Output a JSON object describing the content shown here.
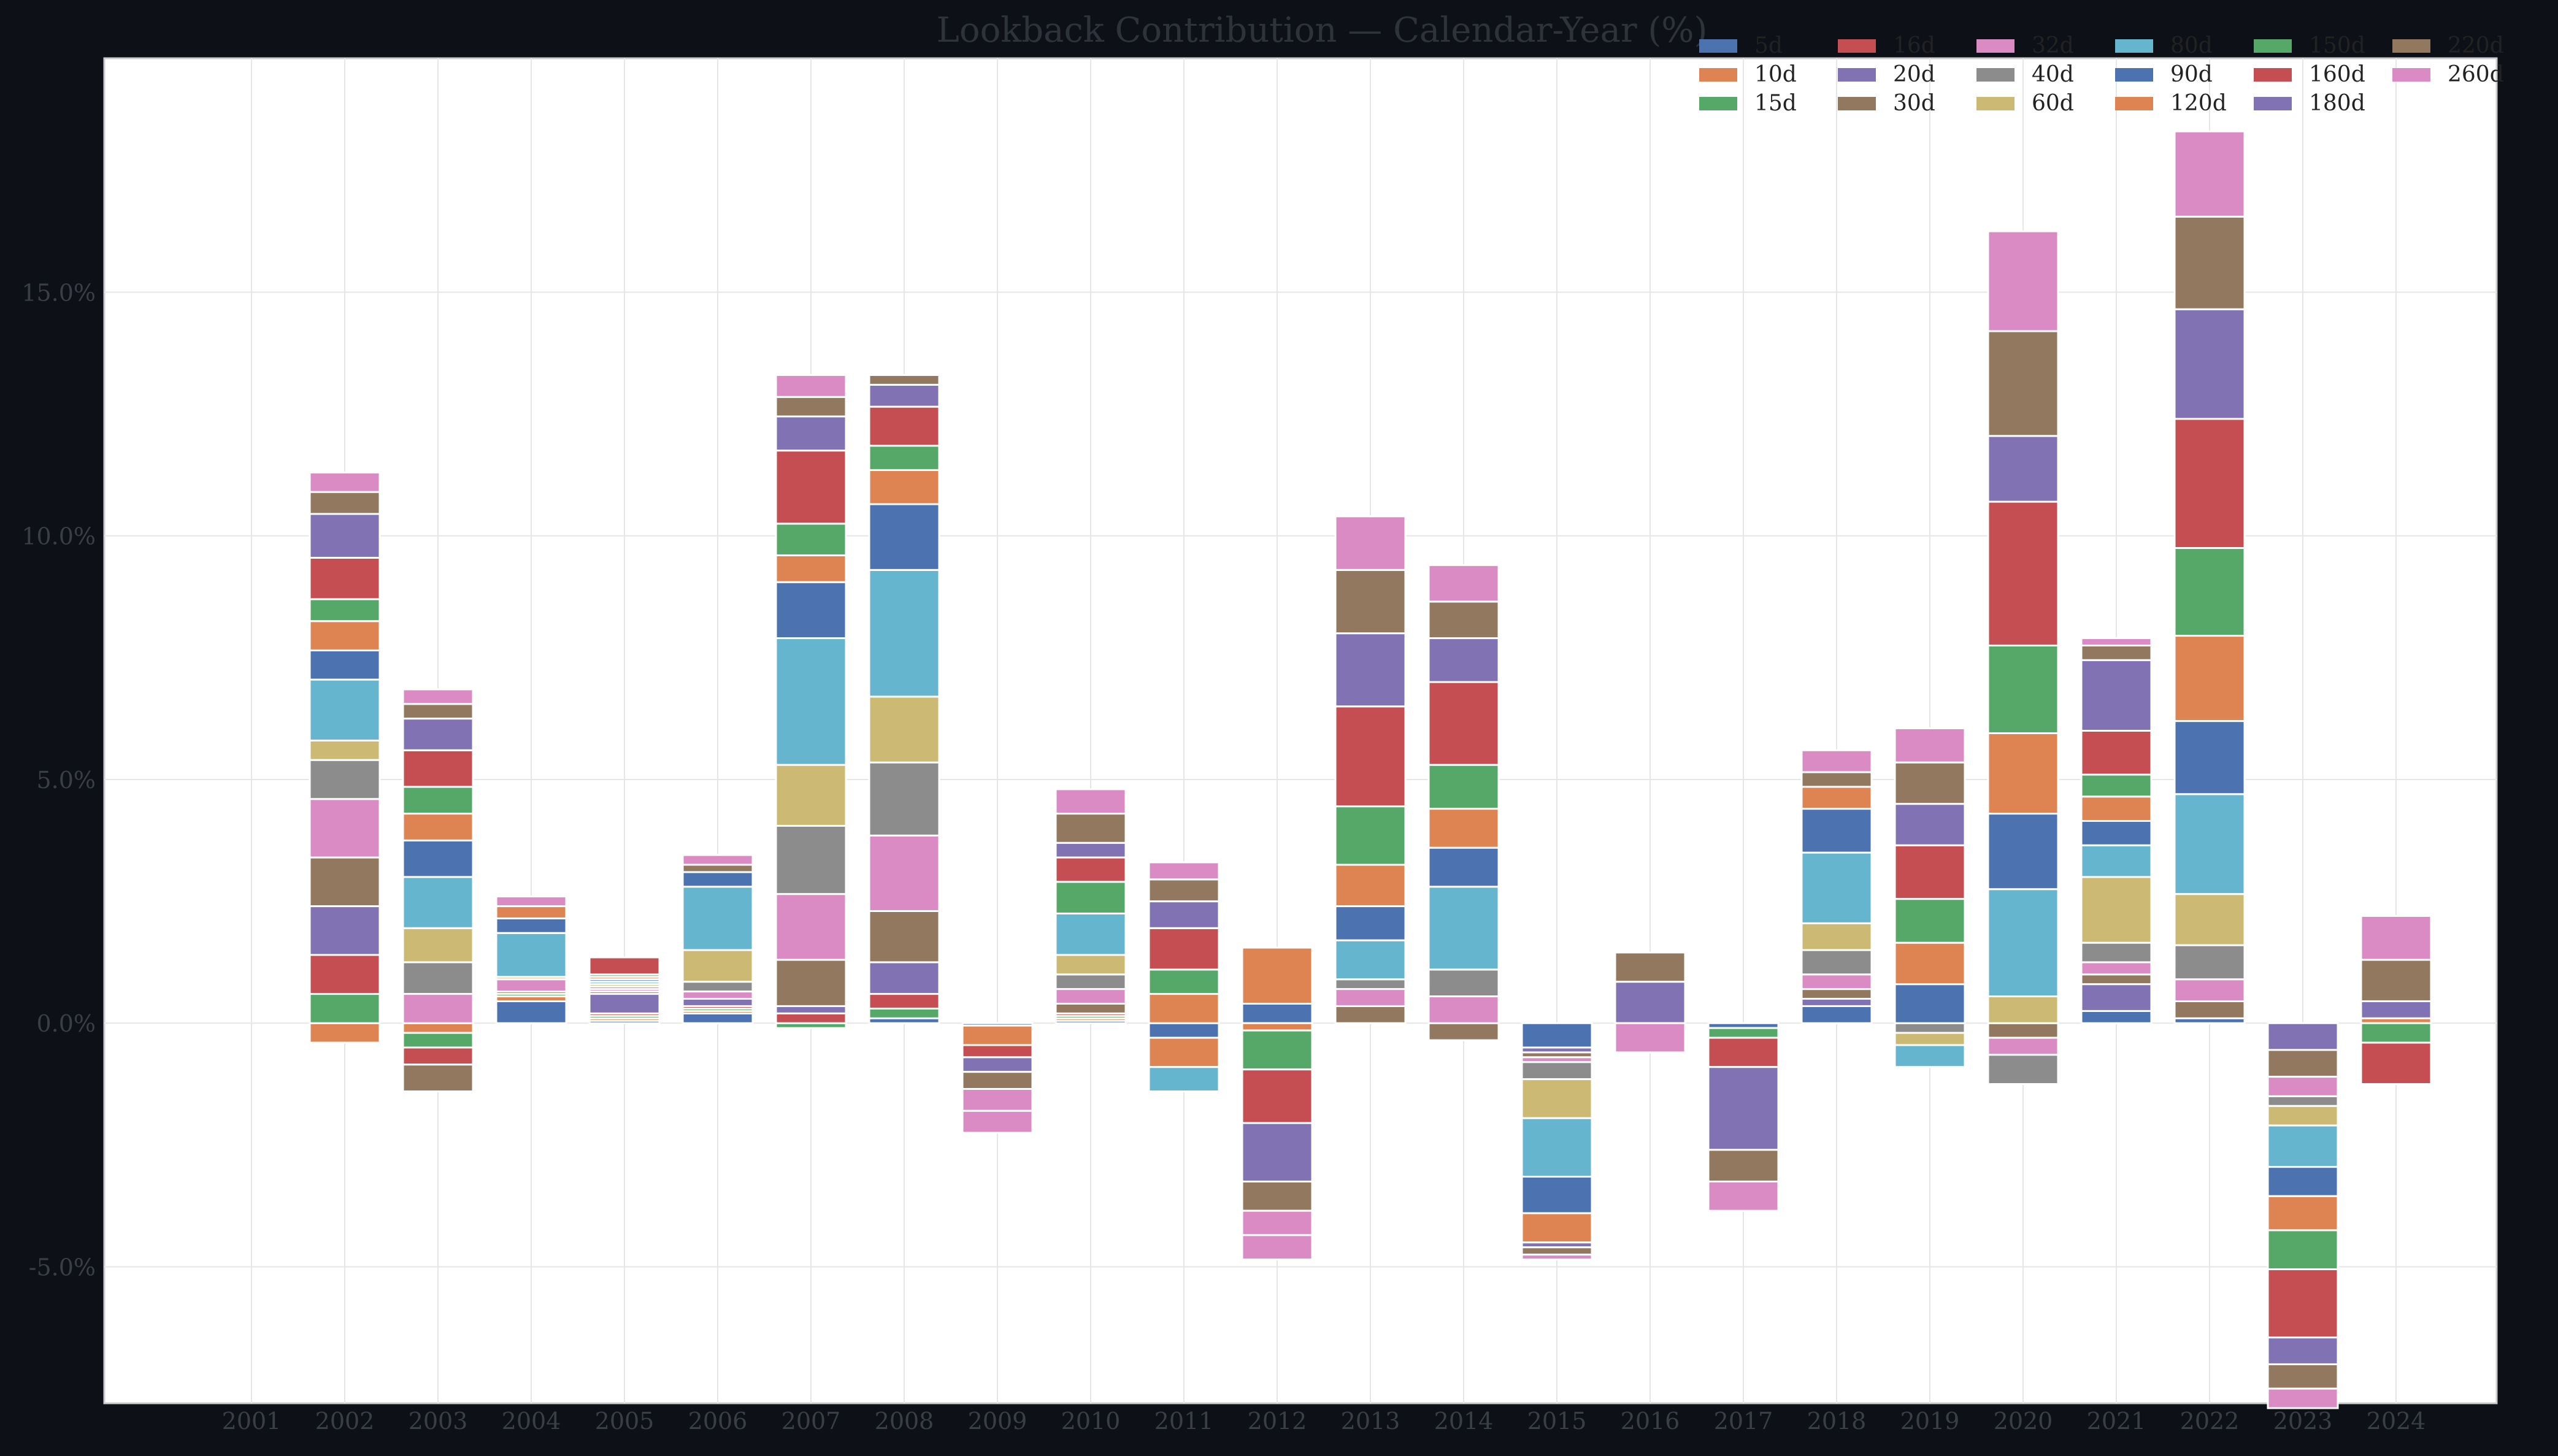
{
  "chart_data": {
    "type": "bar",
    "stacked": true,
    "title": "Lookback Contribution — Calendar-Year (%)",
    "xlabel": "",
    "ylabel": "",
    "categories": [
      "2001",
      "2002",
      "2003",
      "2004",
      "2005",
      "2006",
      "2007",
      "2008",
      "2009",
      "2010",
      "2011",
      "2012",
      "2013",
      "2014",
      "2015",
      "2016",
      "2017",
      "2018",
      "2019",
      "2020",
      "2021",
      "2022",
      "2023",
      "2024"
    ],
    "ylim": [
      -7.8,
      19.8
    ],
    "yticks": [
      -5.0,
      0.0,
      5.0,
      10.0,
      15.0
    ],
    "ytick_labels": [
      "-5.0%",
      "0.0%",
      "5.0%",
      "10.0%",
      "15.0%"
    ],
    "grid": true,
    "legend_position": "top-right",
    "legend_columns": 7,
    "series": [
      {
        "name": "5d",
        "color": "#4c72b0",
        "values": [
          0,
          0,
          0,
          0.45,
          0.05,
          0.2,
          0,
          0.1,
          -0.05,
          0.05,
          -0.3,
          0.4,
          0,
          0,
          -0.5,
          0,
          -0.1,
          0.35,
          0,
          0,
          0.25,
          0.1,
          0,
          0
        ]
      },
      {
        "name": "10d",
        "color": "#dd8452",
        "values": [
          0,
          -0.4,
          -0.2,
          0.1,
          0.05,
          0.05,
          0,
          0,
          -0.4,
          0.05,
          -0.6,
          -0.15,
          0,
          0,
          0,
          0,
          0,
          0,
          0,
          0,
          0,
          0,
          0,
          0.1
        ]
      },
      {
        "name": "15d",
        "color": "#55a868",
        "values": [
          0,
          0.6,
          -0.3,
          0.05,
          0.05,
          0.05,
          -0.1,
          0.2,
          0,
          0.05,
          0,
          -0.8,
          0,
          0,
          0,
          0,
          -0.2,
          0,
          0,
          0,
          0,
          0,
          0,
          -0.4
        ]
      },
      {
        "name": "16d",
        "color": "#c44e52",
        "values": [
          0,
          0.8,
          -0.35,
          0,
          0.05,
          0.05,
          0.2,
          0.3,
          -0.25,
          0.05,
          0,
          -1.1,
          0,
          0,
          0,
          0,
          -0.6,
          0,
          0,
          0,
          0,
          0,
          0,
          -0.85
        ]
      },
      {
        "name": "20d",
        "color": "#8172b3",
        "values": [
          0,
          1.0,
          0,
          0,
          0.4,
          0.15,
          0.15,
          0.65,
          -0.3,
          0,
          0,
          -1.2,
          0,
          0,
          -0.1,
          0.85,
          -1.7,
          0.15,
          0,
          0,
          0.55,
          0,
          -0.55,
          0.35
        ]
      },
      {
        "name": "30d",
        "color": "#937860",
        "values": [
          0,
          1.0,
          -0.55,
          0.05,
          0.05,
          0,
          0.95,
          1.05,
          -0.35,
          0.2,
          0,
          -0.6,
          0.35,
          -0.35,
          -0.1,
          0.6,
          -0.65,
          0.2,
          0,
          -0.3,
          0.2,
          0.35,
          -0.55,
          0.85
        ]
      },
      {
        "name": "32d",
        "color": "#da8bc3",
        "values": [
          0,
          1.2,
          0.6,
          0.25,
          0.05,
          0.15,
          1.35,
          1.55,
          -0.45,
          0.3,
          0,
          -0.5,
          0.35,
          0.55,
          -0.1,
          -0.6,
          -0.6,
          0.3,
          0,
          -0.35,
          0.25,
          0.45,
          -0.4,
          0
        ]
      },
      {
        "name": "40d",
        "color": "#8c8c8c",
        "values": [
          0,
          0.8,
          0.65,
          0,
          0.05,
          0.2,
          1.4,
          1.5,
          0,
          0.3,
          0,
          0,
          0.2,
          0.55,
          -0.35,
          0,
          0,
          0.5,
          -0.2,
          -0.6,
          0.4,
          0.7,
          -0.2,
          0
        ]
      },
      {
        "name": "60d",
        "color": "#ccb974",
        "values": [
          0,
          0.4,
          0.7,
          0.05,
          0.05,
          0.65,
          1.25,
          1.35,
          0,
          0.4,
          0,
          0,
          0,
          0,
          -0.8,
          0,
          0,
          0.55,
          -0.25,
          0.55,
          1.35,
          1.05,
          -0.4,
          0
        ]
      },
      {
        "name": "80d",
        "color": "#64b5cd",
        "values": [
          0,
          1.25,
          1.05,
          0.9,
          0.05,
          1.3,
          2.6,
          2.6,
          0,
          0.85,
          -0.5,
          0,
          0.8,
          1.7,
          -1.2,
          0,
          0,
          1.45,
          -0.45,
          2.2,
          0.65,
          2.05,
          -0.85,
          0
        ]
      },
      {
        "name": "90d",
        "color": "#4c72b0",
        "values": [
          0,
          0.6,
          0.75,
          0.3,
          0.05,
          0.3,
          1.15,
          1.35,
          0,
          0,
          0,
          0,
          0.7,
          0.8,
          -0.75,
          0,
          0,
          0.9,
          0.8,
          1.55,
          0.5,
          1.5,
          -0.6,
          0
        ]
      },
      {
        "name": "120d",
        "color": "#dd8452",
        "values": [
          0,
          0.6,
          0.55,
          0.25,
          0.05,
          0,
          0.55,
          0.7,
          0,
          0,
          0.6,
          1.15,
          0.85,
          0.8,
          -0.6,
          0,
          0,
          0.45,
          0.85,
          1.65,
          0.5,
          1.75,
          -0.7,
          0
        ]
      },
      {
        "name": "150d",
        "color": "#55a868",
        "values": [
          0,
          0.45,
          0.55,
          0,
          0.05,
          0,
          0.65,
          0.5,
          0,
          0.65,
          0.5,
          0,
          1.2,
          0.9,
          0,
          0,
          0,
          0,
          0.9,
          1.8,
          0.45,
          1.8,
          -0.8,
          0
        ]
      },
      {
        "name": "160d",
        "color": "#c44e52",
        "values": [
          0,
          0.85,
          0.75,
          0,
          0.35,
          0,
          1.5,
          0.8,
          0,
          0.5,
          0.85,
          0,
          2.05,
          1.7,
          0,
          0,
          0,
          0,
          1.1,
          2.95,
          0.9,
          2.65,
          -1.4,
          0
        ]
      },
      {
        "name": "180d",
        "color": "#8172b3",
        "values": [
          0,
          0.9,
          0.65,
          0,
          0,
          0,
          0.7,
          0.45,
          0,
          0.3,
          0.55,
          0,
          1.5,
          0.9,
          -0.1,
          0,
          0,
          0,
          0.85,
          1.35,
          1.45,
          2.25,
          -0.55,
          0
        ]
      },
      {
        "name": "220d",
        "color": "#937860",
        "values": [
          0,
          0.45,
          0.3,
          0,
          0,
          0.15,
          0.4,
          0.2,
          0,
          0.6,
          0.45,
          0,
          1.3,
          0.75,
          -0.15,
          0,
          0,
          0.3,
          0.85,
          2.15,
          0.3,
          1.9,
          -0.5,
          0
        ]
      },
      {
        "name": "260d",
        "color": "#da8bc3",
        "values": [
          0,
          0.4,
          0.3,
          0.2,
          0,
          0.2,
          0.45,
          0,
          -0.45,
          0.5,
          0.35,
          -0.5,
          1.1,
          0.75,
          -0.1,
          0,
          0,
          0.45,
          0.7,
          2.05,
          0.15,
          1.75,
          -0.4,
          0.9
        ]
      }
    ]
  }
}
